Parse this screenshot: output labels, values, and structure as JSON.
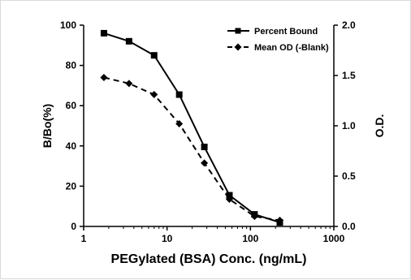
{
  "chart_data": {
    "type": "line",
    "x_scale": "log",
    "xlabel": "PEGylated (BSA) Conc. (ng/mL)",
    "ylabel_left": "B/Bo(%)",
    "ylabel_right": "O.D.",
    "xlim": [
      1,
      1000
    ],
    "ylim_left": [
      0,
      100
    ],
    "ylim_right": [
      0,
      2.0
    ],
    "x_ticks": [
      "1",
      "10",
      "100",
      "1000"
    ],
    "y_ticks_left": [
      "0",
      "20",
      "40",
      "60",
      "80",
      "100"
    ],
    "y_ticks_right": [
      "0.0",
      "0.5",
      "1.0",
      "1.5",
      "2.0"
    ],
    "x": [
      1.75,
      3.5,
      7,
      14,
      28,
      56,
      112,
      225
    ],
    "series": [
      {
        "name": "Percent Bound",
        "axis": "left",
        "marker": "square",
        "line_style": "solid",
        "values": [
          96,
          92,
          85,
          65.5,
          39.5,
          15.5,
          6,
          2
        ]
      },
      {
        "name": "Mean OD (-Blank)",
        "axis": "right",
        "marker": "diamond",
        "line_style": "dashed",
        "values": [
          1.48,
          1.42,
          1.31,
          1.02,
          0.63,
          0.27,
          0.1,
          0.06
        ]
      }
    ],
    "legend_position": "top-right",
    "grid": false
  }
}
